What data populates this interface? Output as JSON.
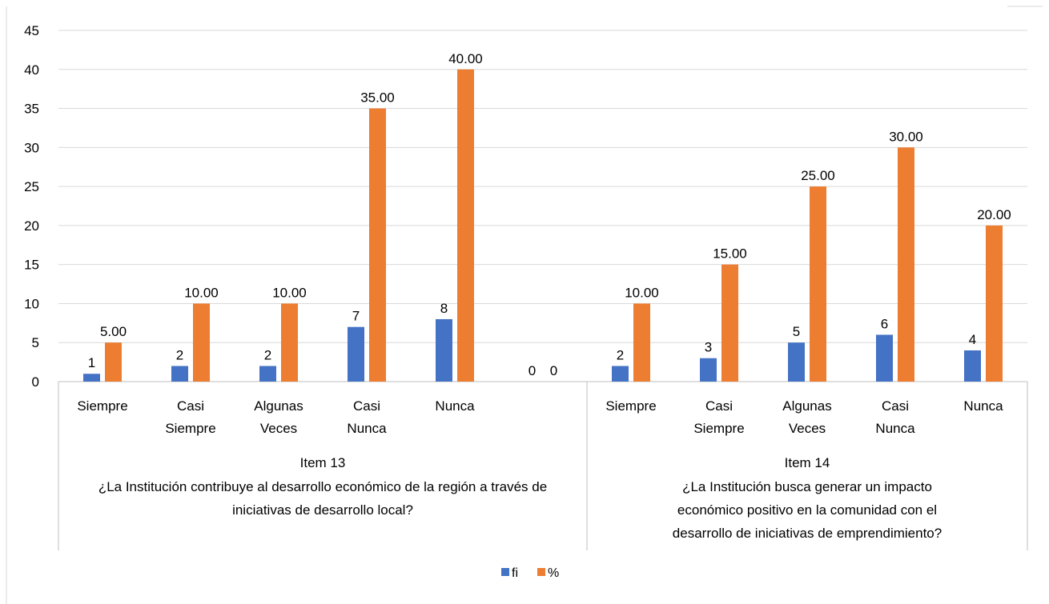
{
  "chart_data": {
    "type": "bar",
    "ylim": [
      0,
      45
    ],
    "yticks": [
      0,
      5,
      10,
      15,
      20,
      25,
      30,
      35,
      40,
      45
    ],
    "grid": true,
    "legend_position": "bottom",
    "groups": [
      {
        "name": "Item 13",
        "question": [
          "¿La Institución contribuye al desarrollo económico de la región a través de",
          "iniciativas de desarrollo local?"
        ],
        "categories": [
          {
            "lines": [
              "Siempre"
            ]
          },
          {
            "lines": [
              "Casi",
              "Siempre"
            ]
          },
          {
            "lines": [
              "Algunas",
              "Veces"
            ]
          },
          {
            "lines": [
              "Casi",
              "Nunca"
            ]
          },
          {
            "lines": [
              "Nunca"
            ]
          },
          {
            "lines": []
          }
        ],
        "fi": [
          1,
          2,
          2,
          7,
          8,
          0
        ],
        "pct": [
          5.0,
          10.0,
          10.0,
          35.0,
          40.0,
          0
        ],
        "fi_labels": [
          "1",
          "2",
          "2",
          "7",
          "8",
          "0"
        ],
        "pct_labels": [
          "5.00",
          "10.00",
          "10.00",
          "35.00",
          "40.00",
          "0"
        ]
      },
      {
        "name": "Item 14",
        "question": [
          "¿La Institución busca generar un impacto",
          "económico positivo en la comunidad con el",
          "desarrollo de iniciativas de emprendimiento?"
        ],
        "categories": [
          {
            "lines": [
              "Siempre"
            ]
          },
          {
            "lines": [
              "Casi",
              "Siempre"
            ]
          },
          {
            "lines": [
              "Algunas",
              "Veces"
            ]
          },
          {
            "lines": [
              "Casi",
              "Nunca"
            ]
          },
          {
            "lines": [
              "Nunca"
            ]
          }
        ],
        "fi": [
          2,
          3,
          5,
          6,
          4
        ],
        "pct": [
          10.0,
          15.0,
          25.0,
          30.0,
          20.0
        ],
        "fi_labels": [
          "2",
          "3",
          "5",
          "6",
          "4"
        ],
        "pct_labels": [
          "10.00",
          "15.00",
          "25.00",
          "30.00",
          "20.00"
        ]
      }
    ],
    "series": [
      {
        "name": "fi",
        "color": "#4472C4"
      },
      {
        "name": "%",
        "color": "#ED7D31"
      }
    ]
  }
}
